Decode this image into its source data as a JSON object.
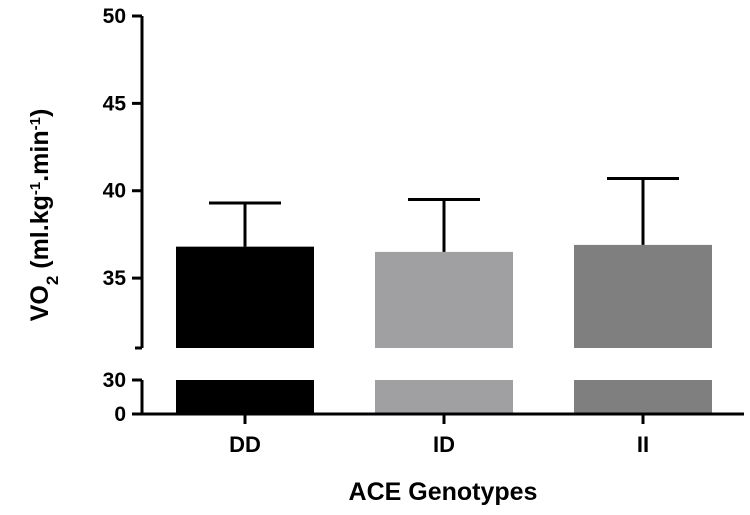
{
  "chart_data": {
    "type": "bar",
    "categories": [
      "DD",
      "ID",
      "II"
    ],
    "values": [
      36.8,
      36.5,
      36.9
    ],
    "error_upper": [
      39.3,
      39.5,
      40.7
    ],
    "colors": [
      "#000000",
      "#a0a0a2",
      "#7f7f7f"
    ],
    "title": "",
    "xlabel": "ACE Genotypes",
    "ylabel": {
      "main": "VO",
      "sub": "2",
      "unit_open": " (ml.kg",
      "sup1": "-1",
      "unit_mid": ".min",
      "sup2": "-1",
      "unit_close": ")"
    },
    "ylim": [
      0,
      50
    ],
    "axis_break": {
      "lower_range": [
        0,
        30
      ],
      "upper_range": [
        31,
        50
      ]
    },
    "yticks_upper": [
      35,
      40,
      45,
      50
    ],
    "yticks_lower": [
      0,
      30
    ],
    "grid": false,
    "legend": "none"
  }
}
